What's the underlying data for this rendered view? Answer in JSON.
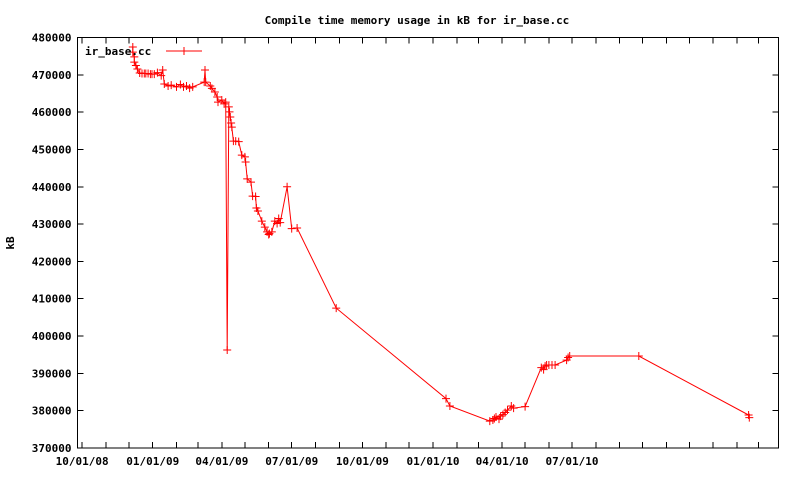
{
  "chart_data": {
    "type": "line",
    "title": "Compile time memory usage in kB for ir_base.cc",
    "xlabel": "",
    "ylabel": "kB",
    "background_color": "#ffffff",
    "text_color": "#000000",
    "border_color": "#000000",
    "grid": false,
    "legend_position": "top-left",
    "x_axis": {
      "type": "date",
      "range": [
        "2008-09-25",
        "2011-03-27"
      ],
      "tick_interval": "1 month",
      "labeled_ticks": [
        {
          "date": "2008-10-01",
          "label": "10/01/08"
        },
        {
          "date": "2009-01-01",
          "label": "01/01/09"
        },
        {
          "date": "2009-04-01",
          "label": "04/01/09"
        },
        {
          "date": "2009-07-01",
          "label": "07/01/09"
        },
        {
          "date": "2009-10-01",
          "label": "10/01/09"
        },
        {
          "date": "2010-01-01",
          "label": "01/01/10"
        },
        {
          "date": "2010-04-01",
          "label": "04/01/10"
        },
        {
          "date": "2010-07-01",
          "label": "07/01/10"
        }
      ]
    },
    "y_axis": {
      "range": [
        370000,
        480000
      ],
      "tick_step": 10000,
      "tick_labels": [
        "370000",
        "380000",
        "390000",
        "400000",
        "410000",
        "420000",
        "430000",
        "440000",
        "450000",
        "460000",
        "470000",
        "480000"
      ]
    },
    "series": [
      {
        "name": "ir_base.cc",
        "color": "#ff0000",
        "marker": "plus",
        "points": [
          [
            "2008-12-06",
            477450
          ],
          [
            "2008-12-06",
            476100
          ],
          [
            "2008-12-08",
            474800
          ],
          [
            "2008-12-08",
            473400
          ],
          [
            "2008-12-10",
            472500
          ],
          [
            "2008-12-12",
            471550
          ],
          [
            "2008-12-15",
            470500
          ],
          [
            "2008-12-18",
            470350
          ],
          [
            "2008-12-21",
            470350
          ],
          [
            "2008-12-23",
            470350
          ],
          [
            "2008-12-26",
            470350
          ],
          [
            "2008-12-29",
            470200
          ],
          [
            "2008-12-31",
            470200
          ],
          [
            "2009-01-03",
            470200
          ],
          [
            "2009-01-07",
            470600
          ],
          [
            "2009-01-12",
            469800
          ],
          [
            "2009-01-14",
            471300
          ],
          [
            "2009-01-16",
            467550
          ],
          [
            "2009-01-21",
            467000
          ],
          [
            "2009-01-25",
            467250
          ],
          [
            "2009-02-01",
            466750
          ],
          [
            "2009-02-06",
            467400
          ],
          [
            "2009-02-10",
            466750
          ],
          [
            "2009-02-14",
            467000
          ],
          [
            "2009-02-18",
            466450
          ],
          [
            "2009-02-22",
            466750
          ],
          [
            "2009-03-09",
            468050
          ],
          [
            "2009-03-10",
            471300
          ],
          [
            "2009-03-11",
            468050
          ],
          [
            "2009-03-17",
            467000
          ],
          [
            "2009-03-19",
            466350
          ],
          [
            "2009-03-23",
            465400
          ],
          [
            "2009-03-26",
            464050
          ],
          [
            "2009-03-27",
            462700
          ],
          [
            "2009-04-01",
            463250
          ],
          [
            "2009-04-04",
            462200
          ],
          [
            "2009-04-06",
            462700
          ],
          [
            "2009-04-08",
            396250
          ],
          [
            "2009-04-10",
            461400
          ],
          [
            "2009-04-11",
            460050
          ],
          [
            "2009-04-12",
            458700
          ],
          [
            "2009-04-13",
            457100
          ],
          [
            "2009-04-14",
            456000
          ],
          [
            "2009-04-16",
            452250
          ],
          [
            "2009-04-19",
            452250
          ],
          [
            "2009-04-23",
            452100
          ],
          [
            "2009-04-27",
            448500
          ],
          [
            "2009-05-01",
            448000
          ],
          [
            "2009-05-02",
            446650
          ],
          [
            "2009-05-04",
            442100
          ],
          [
            "2009-05-09",
            441250
          ],
          [
            "2009-05-11",
            437500
          ],
          [
            "2009-05-15",
            437400
          ],
          [
            "2009-05-16",
            434300
          ],
          [
            "2009-05-18",
            433500
          ],
          [
            "2009-05-23",
            430800
          ],
          [
            "2009-05-27",
            429200
          ],
          [
            "2009-05-30",
            427900
          ],
          [
            "2009-06-01",
            427200
          ],
          [
            "2009-06-02",
            427450
          ],
          [
            "2009-06-05",
            427900
          ],
          [
            "2009-06-09",
            430800
          ],
          [
            "2009-06-12",
            430150
          ],
          [
            "2009-06-14",
            431500
          ],
          [
            "2009-06-16",
            430400
          ],
          [
            "2009-06-25",
            440000
          ],
          [
            "2009-07-01",
            428800
          ],
          [
            "2009-07-08",
            428950
          ],
          [
            "2009-08-28",
            407500
          ],
          [
            "2010-01-18",
            383250
          ],
          [
            "2010-01-23",
            381250
          ],
          [
            "2010-03-16",
            377200
          ],
          [
            "2010-03-20",
            377500
          ],
          [
            "2010-03-22",
            377900
          ],
          [
            "2010-03-24",
            378300
          ],
          [
            "2010-03-28",
            377750
          ],
          [
            "2010-03-30",
            378550
          ],
          [
            "2010-04-02",
            378950
          ],
          [
            "2010-04-05",
            379500
          ],
          [
            "2010-04-08",
            380150
          ],
          [
            "2010-04-13",
            381250
          ],
          [
            "2010-04-16",
            380700
          ],
          [
            "2010-05-01",
            381100
          ],
          [
            "2010-05-22",
            391550
          ],
          [
            "2010-05-25",
            391000
          ],
          [
            "2010-05-27",
            391950
          ],
          [
            "2010-05-29",
            392250
          ],
          [
            "2010-06-01",
            392250
          ],
          [
            "2010-06-05",
            392250
          ],
          [
            "2010-06-09",
            392250
          ],
          [
            "2010-06-24",
            393550
          ],
          [
            "2010-06-26",
            394250
          ],
          [
            "2010-06-28",
            394650
          ],
          [
            "2010-09-26",
            394650
          ],
          [
            "2011-02-16",
            378850
          ],
          [
            "2011-02-17",
            378150
          ]
        ]
      }
    ]
  }
}
